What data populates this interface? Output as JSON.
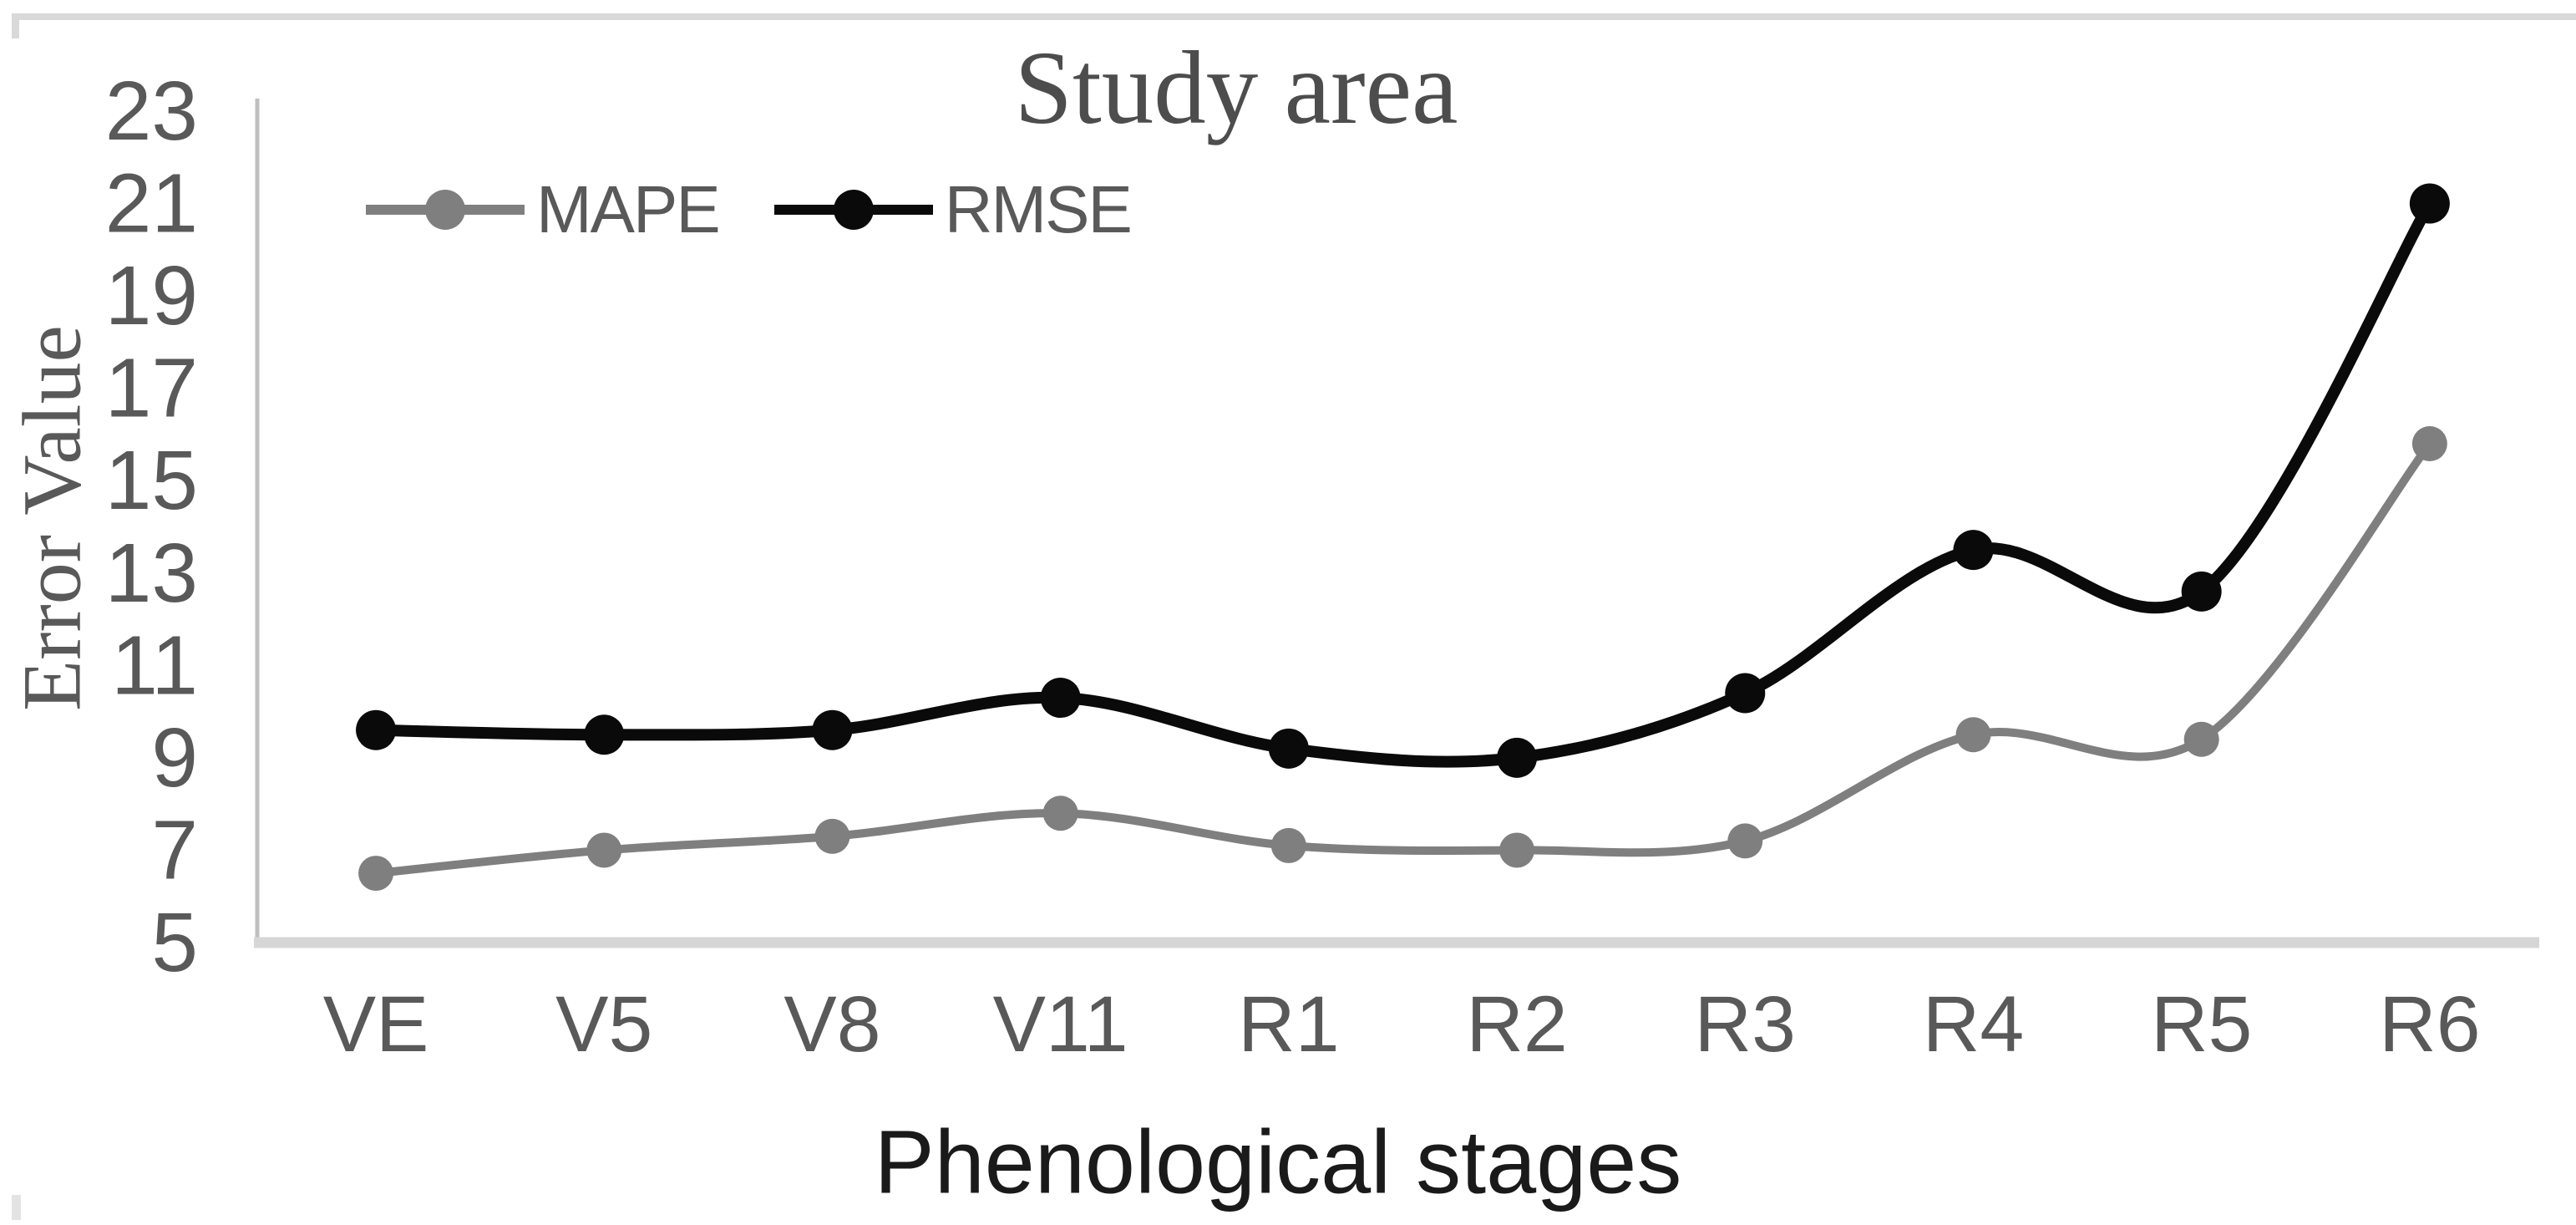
{
  "chart_data": {
    "type": "line",
    "title": "Study area",
    "xlabel": "Phenological stages",
    "ylabel": "Error Value",
    "categories": [
      "VE",
      "V5",
      "V8",
      "V11",
      "R1",
      "R2",
      "R3",
      "R4",
      "R5",
      "R6"
    ],
    "y_ticks": [
      23,
      21,
      19,
      17,
      15,
      13,
      11,
      9,
      7,
      5
    ],
    "ylim": [
      5,
      23
    ],
    "grid": false,
    "line_style": "smooth",
    "legend_position": "top-left-inside",
    "series": [
      {
        "name": "MAPE",
        "color": "#7f7f7f",
        "values": [
          6.5,
          7.0,
          7.3,
          7.8,
          7.1,
          7.0,
          7.2,
          9.5,
          9.4,
          15.8
        ]
      },
      {
        "name": "RMSE",
        "color": "#0a0a0a",
        "values": [
          9.6,
          9.5,
          9.6,
          10.3,
          9.2,
          9.0,
          10.4,
          13.5,
          12.6,
          21.0
        ]
      }
    ],
    "axis_color": "#bfbfbf",
    "baseline_color": "#d6d6d6",
    "tick_text_color": "#595959",
    "title_color": "#4d4d4d",
    "xlabel_color": "#1a1a1a"
  }
}
